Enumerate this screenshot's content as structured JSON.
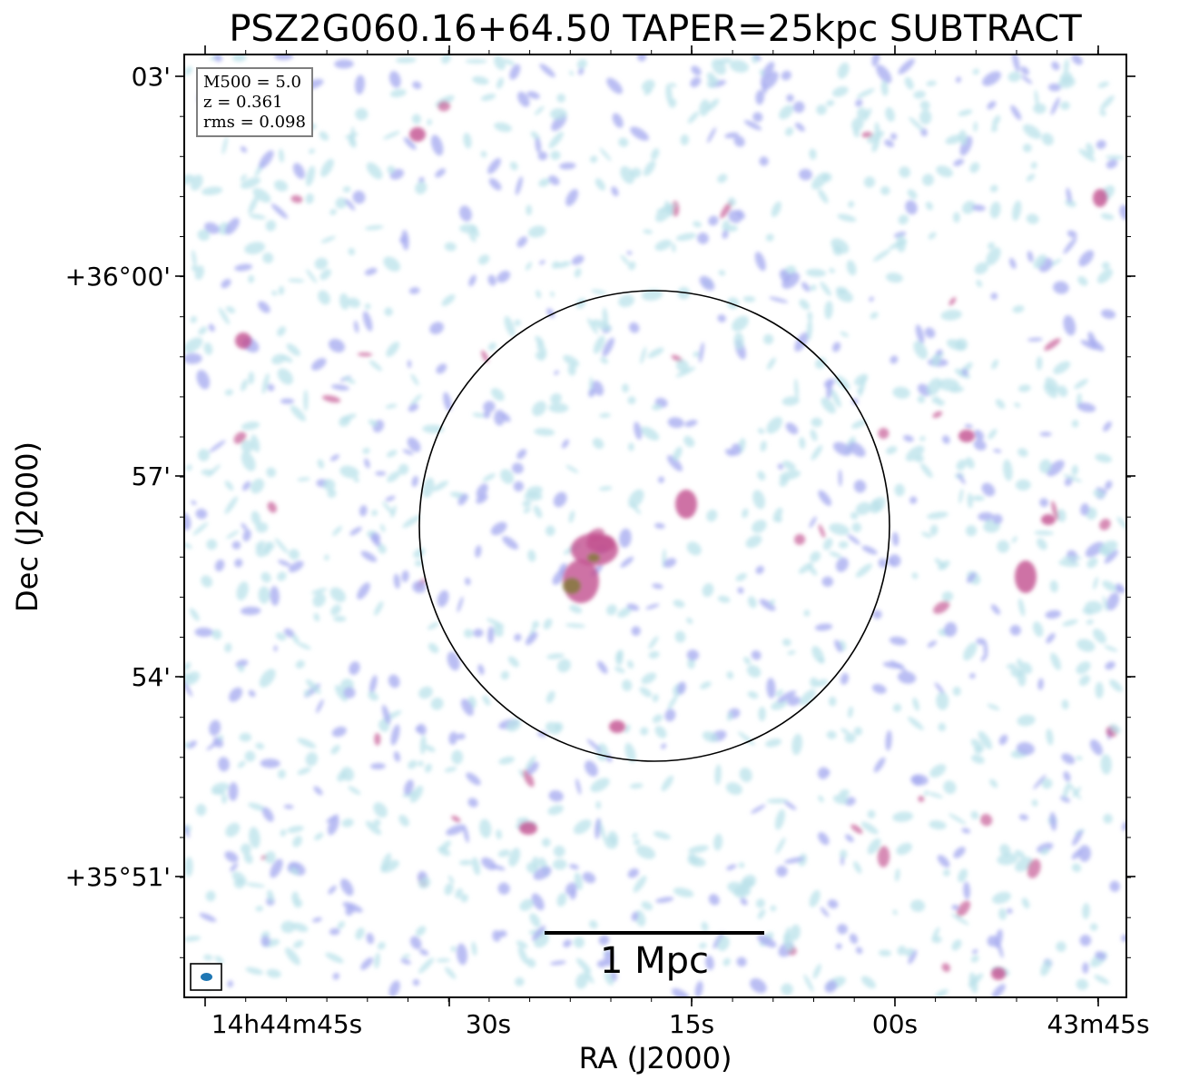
{
  "chart_data": {
    "type": "heatmap",
    "title": "PSZ2G060.16+64.50 TAPER=25kpc SUBTRACT",
    "xlabel": "RA (J2000)",
    "ylabel": "Dec (J2000)",
    "x_ticks": [
      "14h44m45s",
      "30s",
      "15s",
      "00s",
      "43m45s"
    ],
    "y_ticks": [
      "03'",
      "+36°00'",
      "57'",
      "54'",
      "+35°51'"
    ],
    "legend": {
      "placement": "top-left",
      "lines": [
        "M500 = 5.0",
        "z = 0.361",
        "rms = 0.098"
      ]
    },
    "scalebar": {
      "label": "1 Mpc"
    },
    "beam": {
      "placement": "bottom-left"
    },
    "colors": {
      "low": "#b9e1ea",
      "mid": "#a9aef0",
      "high": "#c2508f",
      "peak": "#7a7a2c",
      "circle": "#000000",
      "beam": "#1f77b4"
    }
  }
}
